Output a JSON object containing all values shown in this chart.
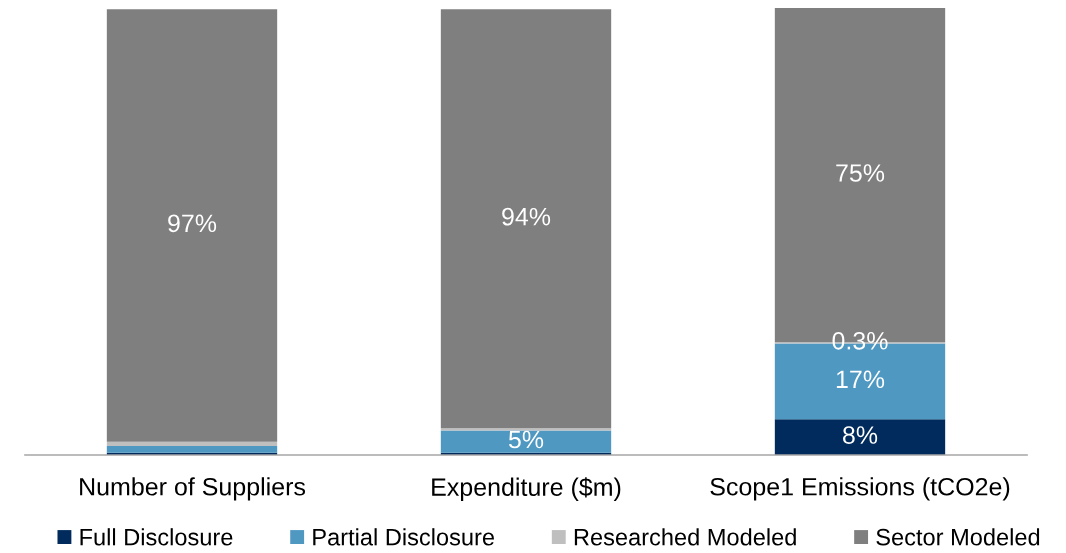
{
  "chart_data": {
    "type": "bar",
    "stacked": true,
    "categories": [
      "Number of Suppliers",
      "Expenditure ($m)",
      "Scope1 Emissions (tCO2e)"
    ],
    "series": [
      {
        "name": "Full Disclosure",
        "color": "#002b5c",
        "values": [
          0.5,
          0.5,
          8
        ],
        "value_labels": [
          null,
          null,
          "8%"
        ]
      },
      {
        "name": "Partial Disclosure",
        "color": "#4f98c2",
        "values": [
          1.5,
          5,
          17
        ],
        "value_labels": [
          null,
          "5%",
          "17%"
        ]
      },
      {
        "name": "Researched Modeled",
        "color": "#bfbfbf",
        "values": [
          1,
          0.5,
          0.3
        ],
        "value_labels": [
          null,
          null,
          "0.3%"
        ]
      },
      {
        "name": "Sector Modeled",
        "color": "#7f7f7f",
        "values": [
          97,
          94,
          75
        ],
        "value_labels": [
          "97%",
          "94%",
          "75%"
        ]
      }
    ],
    "ylim": [
      0,
      100.3
    ],
    "tick_labels": "x",
    "legend": "bottom",
    "grid": false
  }
}
